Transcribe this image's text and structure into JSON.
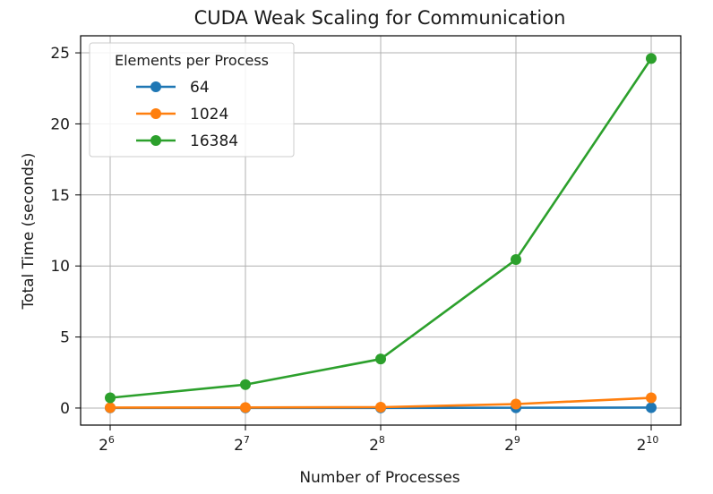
{
  "chart_data": {
    "type": "line",
    "title": "CUDA Weak Scaling for Communication",
    "xlabel": "Number of Processes",
    "ylabel": "Total Time (seconds)",
    "x_scale": "log2",
    "x": [
      64,
      128,
      256,
      512,
      1024
    ],
    "x_ticks": [
      {
        "base": "2",
        "exp": "6"
      },
      {
        "base": "2",
        "exp": "7"
      },
      {
        "base": "2",
        "exp": "8"
      },
      {
        "base": "2",
        "exp": "9"
      },
      {
        "base": "2",
        "exp": "10"
      }
    ],
    "ylim": [
      -1.2,
      26.2
    ],
    "y_ticks": [
      "0",
      "5",
      "10",
      "15",
      "20",
      "25"
    ],
    "grid": true,
    "legend": {
      "title": "Elements per Process",
      "position": "upper-left"
    },
    "series": [
      {
        "name": "64",
        "color": "#1f77b4",
        "values": [
          0.01,
          0.01,
          0.01,
          0.02,
          0.03
        ]
      },
      {
        "name": "1024",
        "color": "#ff7f0e",
        "values": [
          0.03,
          0.04,
          0.06,
          0.28,
          0.72
        ]
      },
      {
        "name": "16384",
        "color": "#2ca02c",
        "values": [
          0.72,
          1.65,
          3.45,
          10.45,
          24.6
        ]
      }
    ]
  }
}
